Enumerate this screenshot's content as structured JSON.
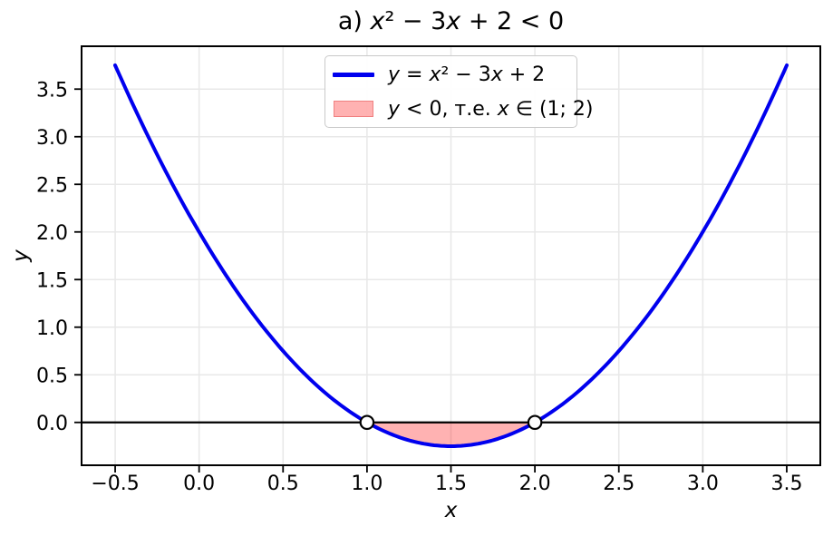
{
  "title": {
    "plain": "a) x² − 3x + 2 < 0",
    "segments": [
      [
        "a) ",
        false
      ],
      [
        "x",
        true
      ],
      [
        "² − 3",
        false
      ],
      [
        "x",
        true
      ],
      [
        " + 2 < 0",
        false
      ]
    ]
  },
  "axes": {
    "x_label_plain": "x",
    "y_label_plain": "y",
    "x_label_segments": [
      [
        "x",
        true
      ]
    ],
    "y_label_segments": [
      [
        "y",
        true
      ]
    ]
  },
  "legend": {
    "position": "upper center",
    "entries": [
      {
        "swatch": "line",
        "label_plain": "y = x² − 3x + 2",
        "segments": [
          [
            "y",
            true
          ],
          [
            " = ",
            false
          ],
          [
            "x",
            true
          ],
          [
            "² − 3",
            false
          ],
          [
            "x",
            true
          ],
          [
            " + 2",
            false
          ]
        ]
      },
      {
        "swatch": "patch",
        "label_plain": "y < 0, т.е. x ∈ (1; 2)",
        "segments": [
          [
            "y",
            true
          ],
          [
            " < 0, т.е. ",
            false
          ],
          [
            "x",
            true
          ],
          [
            " ∈ (1; 2)",
            false
          ]
        ]
      }
    ]
  },
  "chart_data": {
    "type": "line",
    "title": "a) x² − 3x + 2 < 0",
    "xlabel": "x",
    "ylabel": "y",
    "function": "y = x^2 - 3x + 2",
    "coefficients": {
      "a": 1,
      "b": -3,
      "c": 2
    },
    "x_range": [
      -0.5,
      3.5
    ],
    "xlim": [
      -0.7,
      3.7
    ],
    "ylim": [
      -0.45,
      3.95
    ],
    "x_ticks": [
      -0.5,
      0,
      0.5,
      1,
      1.5,
      2,
      2.5,
      3,
      3.5
    ],
    "x_tick_labels": [
      "−0.5",
      "0.0",
      "0.5",
      "1.0",
      "1.5",
      "2.0",
      "2.5",
      "3.0",
      "3.5"
    ],
    "y_ticks": [
      0,
      0.5,
      1,
      1.5,
      2,
      2.5,
      3,
      3.5
    ],
    "y_tick_labels": [
      "0.0",
      "0.5",
      "1.0",
      "1.5",
      "2.0",
      "2.5",
      "3.0",
      "3.5"
    ],
    "grid": true,
    "key_points": [
      {
        "x": -0.5,
        "y": 3.75,
        "note": "left endpoint"
      },
      {
        "x": 1,
        "y": 0,
        "note": "root"
      },
      {
        "x": 1.5,
        "y": -0.25,
        "note": "vertex"
      },
      {
        "x": 2,
        "y": 0,
        "note": "root"
      },
      {
        "x": 3.5,
        "y": 3.75,
        "note": "right endpoint"
      }
    ],
    "roots": [
      {
        "x": 1,
        "y": 0
      },
      {
        "x": 2,
        "y": 0
      }
    ],
    "shaded_region": {
      "x_from": 1,
      "x_to": 2,
      "fill_color": "rgba(255,0,0,0.30)",
      "edge_color": "#f08080"
    },
    "zero_line": {
      "y": 0,
      "color": "#000000"
    },
    "series": [
      {
        "name": "y = x² − 3x + 2",
        "color": "#0000ee",
        "linewidth": 4
      }
    ],
    "colors": {
      "frame": "#000000",
      "grid": "#e8e8e8",
      "text": "#000000",
      "marker_face": "#ffffff",
      "marker_edge": "#000000"
    }
  }
}
